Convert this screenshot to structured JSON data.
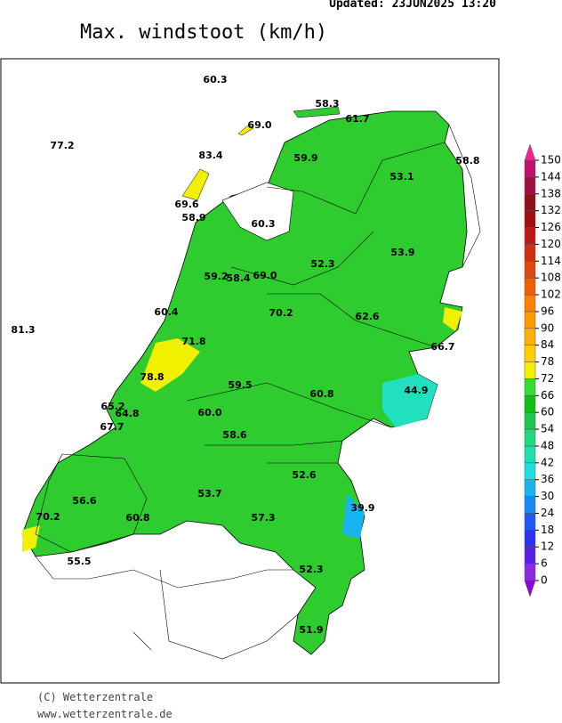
{
  "header": {
    "updated": "Updated: 23JUN2025 13:20",
    "title": "Max. windstoot (km/h)"
  },
  "stations": [
    "60.3",
    "58.3",
    "61.7",
    "69.0",
    "77.2",
    "83.4",
    "59.9",
    "58.8",
    "53.1",
    "69.6",
    "58.9",
    "60.3",
    "52.3",
    "53.9",
    "59.2",
    "58.4",
    "69.0",
    "60.4",
    "70.2",
    "62.6",
    "81.3",
    "71.8",
    "66.7",
    "78.8",
    "59.5",
    "60.8",
    "44.9",
    "65.2",
    "64.8",
    "60.0",
    "67.7",
    "58.6",
    "52.6",
    "56.6",
    "53.7",
    "39.9",
    "57.3",
    "70.2",
    "60.8",
    "55.5",
    "52.3",
    "51.9"
  ],
  "colorbar": {
    "ticks": [
      0,
      6,
      12,
      18,
      24,
      30,
      36,
      42,
      48,
      54,
      60,
      66,
      72,
      78,
      84,
      90,
      96,
      102,
      108,
      114,
      120,
      126,
      132,
      138,
      144,
      150
    ],
    "colors": [
      "#8a2be2",
      "#5a1ee8",
      "#3030f0",
      "#1e5af5",
      "#1a88f5",
      "#18b4f0",
      "#1ee0e0",
      "#20e0b0",
      "#20d880",
      "#20c850",
      "#10c010",
      "#30e030",
      "#f0f000",
      "#ffd000",
      "#ffb000",
      "#ff9a00",
      "#ff8000",
      "#f06000",
      "#e04810",
      "#d03010",
      "#c01818",
      "#a01010",
      "#901018",
      "#a01040",
      "#c01070"
    ],
    "under_color": "#9000e0",
    "over_color": "#ff2090"
  },
  "footer": {
    "copyright": "(C) Wetterzentrale",
    "url": "www.wetterzentrale.de"
  }
}
